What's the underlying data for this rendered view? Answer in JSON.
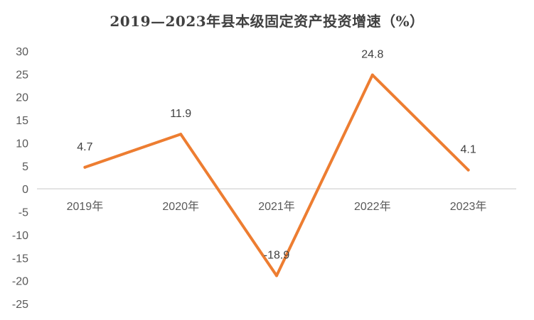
{
  "chart_data": {
    "type": "line",
    "title": "2019—2023年县本级固定资产投资增速（%）",
    "categories": [
      "2019年",
      "2020年",
      "2021年",
      "2022年",
      "2023年"
    ],
    "series": [
      {
        "values": [
          4.7,
          11.9,
          -18.9,
          24.8,
          4.1
        ],
        "color": "#ED7D31"
      }
    ],
    "data_labels": [
      "4.7",
      "11.9",
      "-18.9",
      "24.8",
      "4.1"
    ],
    "ylim": [
      -25,
      30
    ],
    "yticks": [
      30,
      25,
      20,
      15,
      10,
      5,
      0,
      -5,
      -10,
      -15,
      -20,
      -25
    ],
    "ytick_labels": [
      "30",
      "25",
      "20",
      "15",
      "10",
      "5",
      "0",
      "-5",
      "-10",
      "-15",
      "-20",
      "-25"
    ],
    "xlabel": "",
    "ylabel": "",
    "grid": false,
    "legend": "none",
    "axis_color": "#D9D9D9"
  }
}
